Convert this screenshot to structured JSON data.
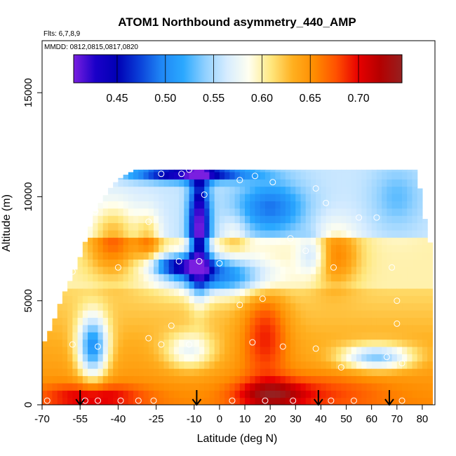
{
  "chart_data": {
    "type": "heatmap",
    "title": "ATOM1 Northbound asymmetry_440_AMP",
    "subtitle_flights": "Flts: 6,7,8,9",
    "subtitle_dates": "MMDD: 0812,0815,0817,0820",
    "xlabel": "Latitude (deg N)",
    "ylabel": "Altitude (m)",
    "xlim": [
      -70,
      85
    ],
    "ylim": [
      0,
      17500
    ],
    "x_ticks": [
      "-70",
      "-55",
      "-40",
      "-25",
      "-10",
      "0",
      "10",
      "20",
      "30",
      "40",
      "50",
      "60",
      "70",
      "80"
    ],
    "x_tick_values": [
      -70,
      -55,
      -40,
      -25,
      -10,
      0,
      10,
      20,
      30,
      40,
      50,
      60,
      70,
      80
    ],
    "y_ticks": [
      "0",
      "5000",
      "10000",
      "15000"
    ],
    "y_tick_values": [
      0,
      5000,
      10000,
      15000
    ],
    "colorbar": {
      "range": [
        0.405,
        0.745
      ],
      "tick_labels": [
        "0.45",
        "0.50",
        "0.55",
        "0.60",
        "0.65",
        "0.70"
      ],
      "tick_values": [
        0.45,
        0.5,
        0.55,
        0.6,
        0.65,
        0.7
      ],
      "colors": [
        "#7a1fe0",
        "#1a00c8",
        "#0000b4",
        "#0a3fd8",
        "#1f86f5",
        "#2aa8ff",
        "#8fd0ff",
        "#d6ecff",
        "#fffff0",
        "#ffe880",
        "#ffb020",
        "#ff8c00",
        "#ff5000",
        "#e80000",
        "#b40000",
        "#962020"
      ]
    },
    "arrow_latitudes": [
      -55,
      -9,
      39,
      67
    ],
    "sample_points": [
      {
        "lat": -68,
        "alt": 200
      },
      {
        "lat": -53,
        "alt": 200
      },
      {
        "lat": -48,
        "alt": 200
      },
      {
        "lat": -39,
        "alt": 200
      },
      {
        "lat": -32,
        "alt": 200
      },
      {
        "lat": -26,
        "alt": 200
      },
      {
        "lat": 5,
        "alt": 200
      },
      {
        "lat": 18,
        "alt": 200
      },
      {
        "lat": 29,
        "alt": 200
      },
      {
        "lat": 44,
        "alt": 200
      },
      {
        "lat": 53,
        "alt": 200
      },
      {
        "lat": 72,
        "alt": 200
      },
      {
        "lat": -58,
        "alt": 2900
      },
      {
        "lat": -48,
        "alt": 2800
      },
      {
        "lat": -28,
        "alt": 3200
      },
      {
        "lat": -23,
        "alt": 2900
      },
      {
        "lat": -12,
        "alt": 2900
      },
      {
        "lat": 13,
        "alt": 3000
      },
      {
        "lat": 25,
        "alt": 2800
      },
      {
        "lat": 38,
        "alt": 2700
      },
      {
        "lat": 48,
        "alt": 1800
      },
      {
        "lat": 66,
        "alt": 2300
      },
      {
        "lat": 72,
        "alt": 2000
      },
      {
        "lat": -19,
        "alt": 3800
      },
      {
        "lat": 70,
        "alt": 3900
      },
      {
        "lat": 8,
        "alt": 4800
      },
      {
        "lat": 17,
        "alt": 5100
      },
      {
        "lat": 70,
        "alt": 5000
      },
      {
        "lat": -58,
        "alt": 6400
      },
      {
        "lat": -40,
        "alt": 6600
      },
      {
        "lat": -16,
        "alt": 6900
      },
      {
        "lat": -8,
        "alt": 6900
      },
      {
        "lat": 0,
        "alt": 6800
      },
      {
        "lat": 34,
        "alt": 7400
      },
      {
        "lat": 45,
        "alt": 6600
      },
      {
        "lat": 68,
        "alt": 6600
      },
      {
        "lat": -56,
        "alt": 8800
      },
      {
        "lat": -28,
        "alt": 8800
      },
      {
        "lat": 28,
        "alt": 8000
      },
      {
        "lat": -49,
        "alt": 9300
      },
      {
        "lat": -6,
        "alt": 10100
      },
      {
        "lat": 38,
        "alt": 10400
      },
      {
        "lat": 42,
        "alt": 9700
      },
      {
        "lat": 62,
        "alt": 9000
      },
      {
        "lat": 55,
        "alt": 9000
      },
      {
        "lat": -23,
        "alt": 11100
      },
      {
        "lat": -15,
        "alt": 11100
      },
      {
        "lat": -12,
        "alt": 11300
      },
      {
        "lat": 8,
        "alt": 10800
      },
      {
        "lat": 14,
        "alt": 11000
      },
      {
        "lat": 21,
        "alt": 10700
      }
    ]
  }
}
